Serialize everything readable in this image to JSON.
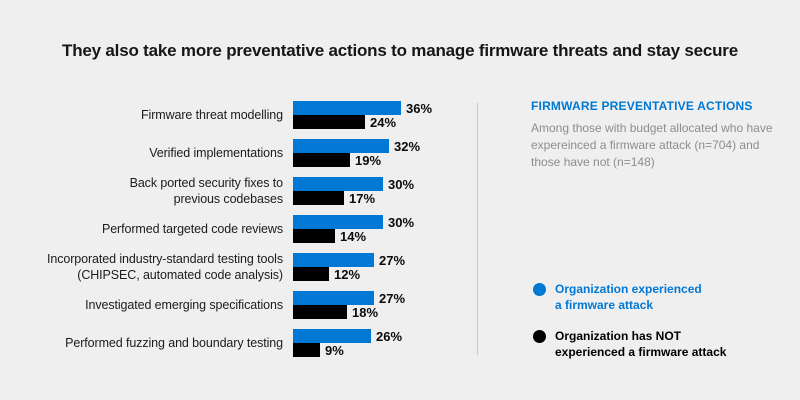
{
  "title": "They also take more preventative actions to manage firmware threats and stay secure",
  "colors": {
    "accent_blue": "#0078d4",
    "bar_black": "#000000",
    "background": "#efefef",
    "muted_text": "#8d8d8d"
  },
  "chart_data": {
    "type": "bar",
    "orientation": "horizontal",
    "value_suffix": "%",
    "xlim": [
      0,
      40
    ],
    "grid": false,
    "legend_position": "right",
    "categories": [
      "Firmware threat modelling",
      "Verified implementations",
      "Back ported security fixes to\nprevious codebases",
      "Performed targeted code reviews",
      "Incorporated industry-standard testing tools\n(CHIPSEC, automated code analysis)",
      "Investigated emerging specifications",
      "Performed fuzzing and boundary testing"
    ],
    "series": [
      {
        "name": "Organization experienced a firmware attack",
        "color": "#0078d4",
        "values": [
          36,
          32,
          30,
          30,
          27,
          27,
          26
        ]
      },
      {
        "name": "Organization has NOT experienced a firmware attack",
        "color": "#000000",
        "values": [
          24,
          19,
          17,
          14,
          12,
          18,
          9
        ]
      }
    ]
  },
  "panel": {
    "heading": "FIRMWARE PREVENTATIVE ACTIONS",
    "description": "Among those with budget allocated who have expereinced a firmware attack (n=704) and those have not (n=148)",
    "legend": [
      {
        "label": "Organization experienced\na firmware attack",
        "color": "#0078d4"
      },
      {
        "label": "Organization has NOT\nexperienced a firmware attack",
        "color": "#000000"
      }
    ]
  }
}
